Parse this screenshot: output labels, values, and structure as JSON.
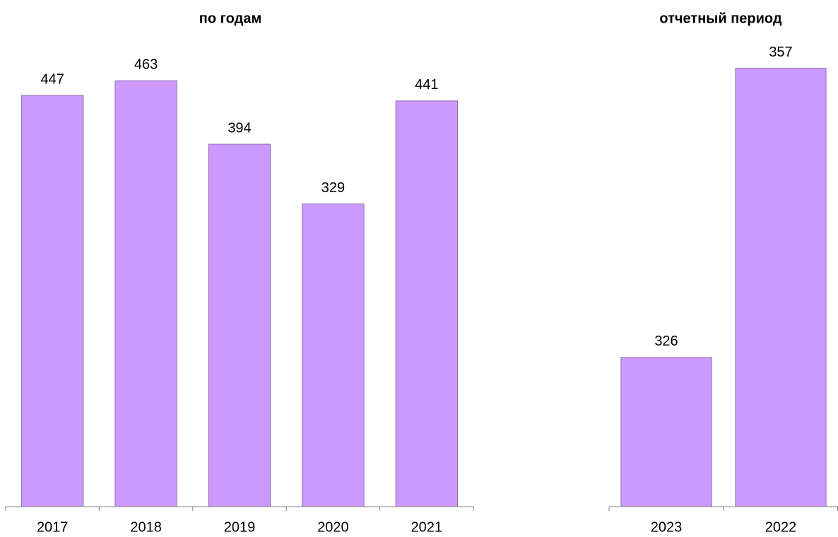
{
  "chart_data": [
    {
      "type": "bar",
      "title": "по годам",
      "categories": [
        "2017",
        "2018",
        "2019",
        "2020",
        "2021"
      ],
      "values": [
        447,
        463,
        394,
        329,
        441
      ],
      "color": "#cc99ff",
      "ylim": [
        0,
        500
      ]
    },
    {
      "type": "bar",
      "title": "отчетный период",
      "categories": [
        "2023",
        "2022"
      ],
      "values": [
        326,
        357
      ],
      "color": "#cc99ff",
      "ylim": [
        310,
        360
      ]
    }
  ]
}
